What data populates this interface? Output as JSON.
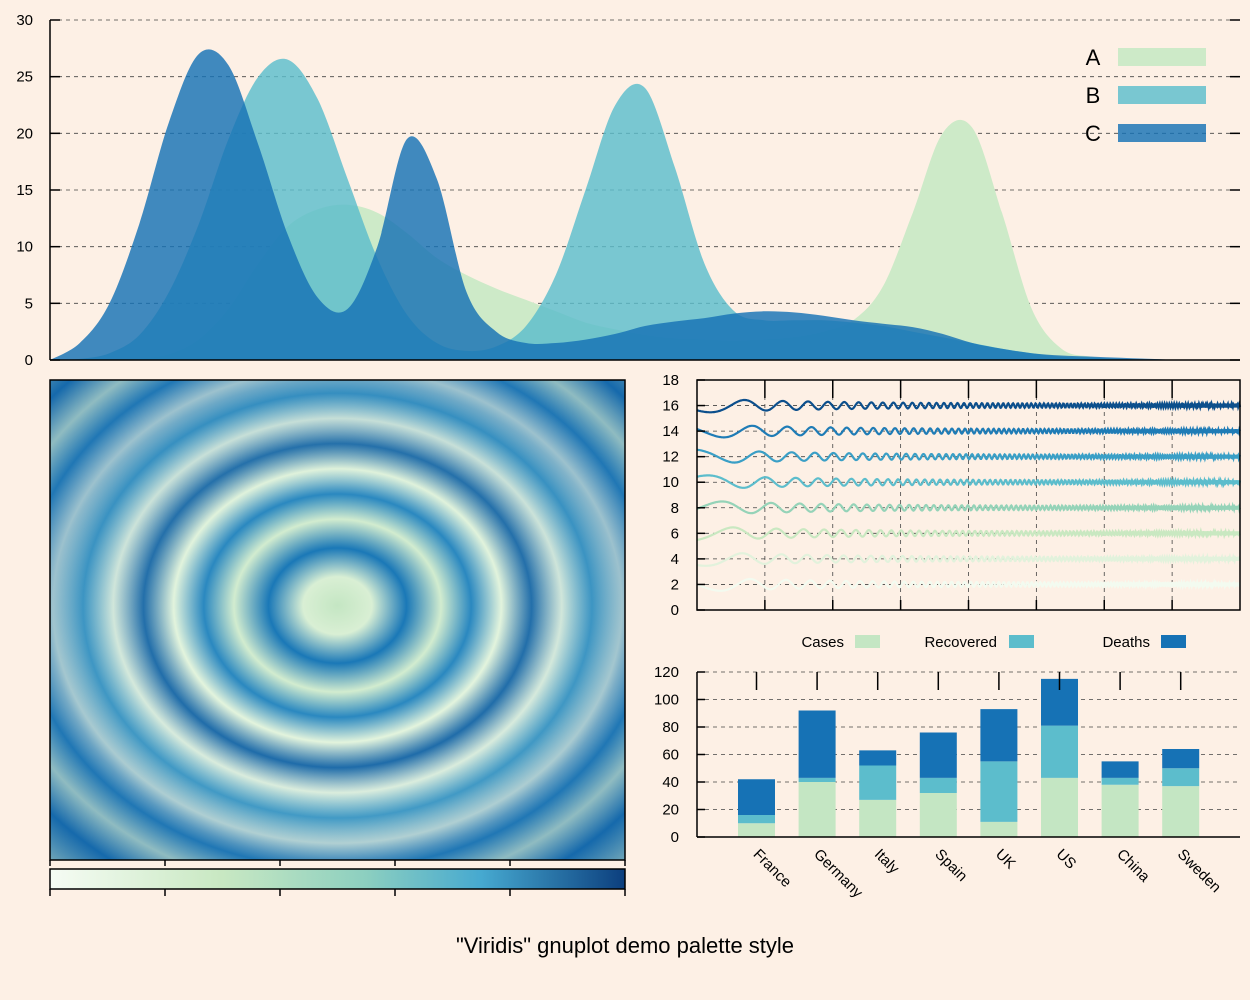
{
  "caption": "\"Viridis\" gnuplot demo palette style",
  "colors": {
    "background": "#fdf0e5",
    "light": "#cdeac8",
    "mid": "#5cbdcc",
    "dark": "#1672b5"
  },
  "chart_data": [
    {
      "type": "area",
      "title": "",
      "xlabel": "",
      "ylabel": "",
      "x": [
        0,
        0.5,
        1,
        1.5,
        2,
        2.5,
        3,
        3.5,
        4,
        4.5,
        5,
        5.5,
        6,
        6.5,
        7,
        7.5,
        8,
        8.5,
        9,
        9.5,
        10,
        10.5,
        11,
        11.5,
        12,
        12.5,
        13,
        13.5,
        14,
        14.5,
        15,
        15.5,
        16,
        16.5,
        17,
        17.5,
        18,
        18.5,
        19,
        19.5,
        20
      ],
      "ylim": [
        0,
        30
      ],
      "yticks": [
        "0",
        "5",
        "10",
        "15",
        "20",
        "25",
        "30"
      ],
      "grid": true,
      "legend_position": "top-right",
      "series": [
        {
          "name": "A",
          "color": "#cdeac8",
          "values": [
            0,
            0,
            0,
            0.1,
            0.5,
            1.8,
            4.5,
            8.5,
            11.8,
            13.3,
            13.7,
            13.0,
            11.2,
            9.0,
            7.5,
            6.3,
            5.3,
            4.3,
            3.3,
            2.7,
            2.2,
            1.9,
            1.8,
            1.7,
            1.8,
            2.0,
            2.5,
            3.5,
            6.5,
            13.0,
            20.0,
            20.5,
            13.0,
            4.5,
            1.0,
            0.3,
            0.1,
            0,
            0,
            0,
            0
          ]
        },
        {
          "name": "B",
          "color": "#5cbdcc",
          "values": [
            0,
            0.1,
            0.6,
            2.2,
            6.0,
            12.0,
            19.5,
            25.0,
            26.5,
            23.0,
            16.0,
            9.0,
            4.0,
            1.5,
            0.8,
            1.2,
            3.0,
            7.5,
            15.0,
            22.5,
            24.0,
            17.0,
            8.5,
            4.3,
            3.5,
            3.5,
            3.5,
            3.3,
            3.0,
            2.5,
            2.0,
            1.5,
            1.0,
            0.6,
            0.3,
            0.2,
            0.1,
            0,
            0,
            0,
            0
          ]
        },
        {
          "name": "C",
          "color": "#1672b5",
          "values": [
            0,
            1.5,
            5.0,
            12.0,
            21.0,
            27.0,
            26.0,
            19.0,
            11.0,
            5.5,
            4.5,
            10.0,
            19.5,
            16.0,
            6.0,
            2.5,
            1.5,
            1.5,
            1.8,
            2.3,
            3.0,
            3.4,
            3.7,
            4.1,
            4.3,
            4.2,
            3.9,
            3.5,
            3.2,
            2.9,
            2.3,
            1.5,
            1.0,
            0.6,
            0.4,
            0.3,
            0.2,
            0.1,
            0,
            0,
            0
          ]
        }
      ]
    },
    {
      "type": "heatmap",
      "title": "",
      "xlabel": "",
      "ylabel": "",
      "description_of_values": "Concentric oscillating rings centred on the panel, colored with the palette shown in the colorbar (light at center to dark blue)",
      "colorbar": true
    },
    {
      "type": "line",
      "title": "",
      "xlabel": "",
      "ylabel": "",
      "ylim": [
        0,
        18
      ],
      "yticks": [
        "0",
        "2",
        "4",
        "6",
        "8",
        "10",
        "12",
        "14",
        "16",
        "18"
      ],
      "grid": true,
      "series_offsets": [
        2,
        4,
        6,
        8,
        10,
        12,
        14,
        16
      ],
      "series_colors": [
        "#f3fbf0",
        "#e2f2dc",
        "#c9e8c1",
        "#95d3b8",
        "#5cbdcc",
        "#3a9fc6",
        "#1f7cb6",
        "#0c4f8c"
      ],
      "series_description": "damped oscillations of increasing frequency, one per offset"
    },
    {
      "type": "bar",
      "stacked": true,
      "title": "",
      "xlabel": "",
      "ylabel": "",
      "ylim": [
        0,
        120
      ],
      "yticks": [
        "0",
        "20",
        "40",
        "60",
        "80",
        "100",
        "120"
      ],
      "grid": true,
      "legend_position": "top",
      "categories": [
        "France",
        "Germany",
        "Italy",
        "Spain",
        "UK",
        "US",
        "China",
        "Sweden"
      ],
      "series": [
        {
          "name": "Cases",
          "color": "#c4e6c3",
          "values": [
            10,
            40,
            27,
            32,
            11,
            43,
            38,
            37
          ]
        },
        {
          "name": "Recovered",
          "color": "#5cbdcc",
          "values": [
            6,
            3,
            25,
            11,
            44,
            38,
            5,
            13
          ]
        },
        {
          "name": "Deaths",
          "color": "#1672b5",
          "values": [
            26,
            49,
            11,
            33,
            38,
            34,
            12,
            14
          ]
        }
      ]
    }
  ]
}
